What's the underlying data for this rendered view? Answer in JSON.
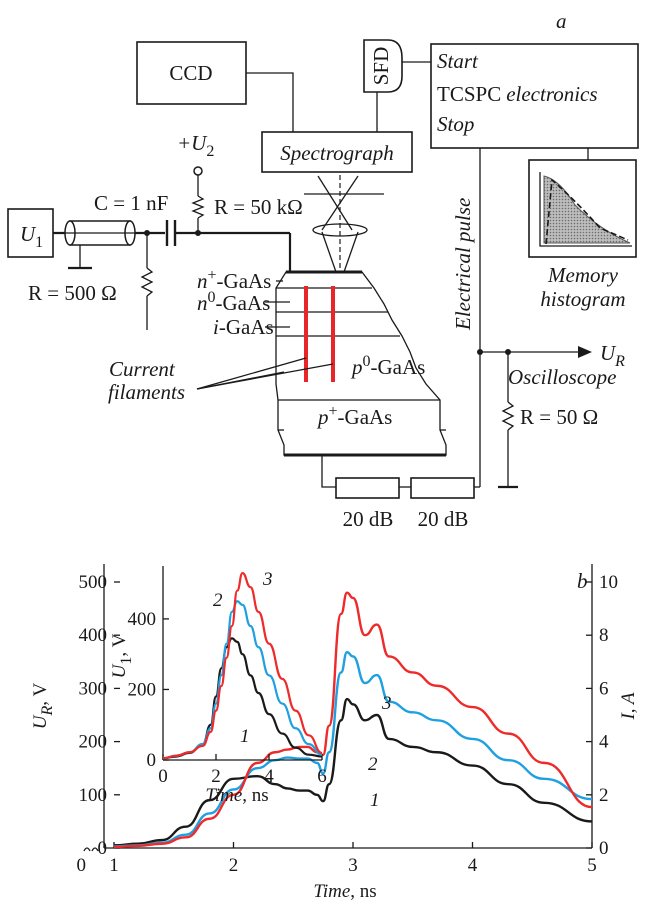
{
  "part_a": {
    "panel_label": "a",
    "ccd": "CCD",
    "sfd": "SFD",
    "spectrograph": "Spectrograph",
    "tcspc": {
      "start": "Start",
      "tcspc_main": "TCSPC",
      "tcspc_it": "electronics",
      "stop": "Stop"
    },
    "memory_histogram_1": "Memory",
    "memory_histogram_2": "histogram",
    "electrical_pulse": "Electrical pulse",
    "u1_sym": "U",
    "u1_sub": "1",
    "u2_sym": "+U",
    "u2_sub": "2",
    "capacitor": "C = 1 nF",
    "r_top": "R = 50 kΩ",
    "r_left": "R = 500 Ω",
    "r_right": "R = 50 Ω",
    "layers": {
      "n_plus": {
        "base": "n",
        "sup": "+",
        "rest": "-GaAs"
      },
      "n_zero": {
        "base": "n",
        "sup": "0",
        "rest": "-GaAs"
      },
      "i": {
        "base": "i",
        "rest": "-GaAs"
      },
      "p_zero": {
        "base": "p",
        "sup": "0",
        "rest": "-GaAs"
      },
      "p_plus": {
        "base": "p",
        "sup": "+",
        "rest": "-GaAs"
      }
    },
    "current_filaments_1": "Current",
    "current_filaments_2": "filaments",
    "ur_sym": "U",
    "ur_sub": "R",
    "oscilloscope": "Oscilloscope",
    "att1": "20 dB",
    "att2": "20 dB"
  },
  "part_b": {
    "panel_label": "b",
    "xlabel_it": "Time",
    "xlabel_unit": ", ns",
    "ylabel_left_sym": "U",
    "ylabel_left_sub": "R",
    "ylabel_left_unit": ", V",
    "ylabel_right": "I, A",
    "inset_xlabel_it": "Time",
    "inset_xlabel_unit": ", ns",
    "inset_ylabel_sym": "U",
    "inset_ylabel_sub": "1",
    "inset_ylabel_unit": ", V",
    "curve_labels": [
      "1",
      "2",
      "3"
    ],
    "inset_curve_labels": [
      "1",
      "2",
      "3"
    ],
    "x_axis_zero": "0"
  },
  "colors": {
    "curve1": "#1a1a1a",
    "curve2": "#1fa0e0",
    "curve3": "#ee2a2a",
    "filament": "#e8262a"
  },
  "chart_data": [
    {
      "type": "line",
      "xlim": [
        1,
        5
      ],
      "ylim": [
        0,
        500
      ],
      "y2lim": [
        0,
        10
      ],
      "xticks": [
        1,
        2,
        3,
        4,
        5
      ],
      "yticks": [
        0,
        100,
        200,
        300,
        400,
        500
      ],
      "y2ticks": [
        0,
        2,
        4,
        6,
        8,
        10
      ],
      "series": [
        {
          "name": "1",
          "x": [
            1.0,
            1.2,
            1.4,
            1.6,
            1.8,
            2.0,
            2.2,
            2.35,
            2.45,
            2.55,
            2.62,
            2.7,
            2.75,
            2.8,
            2.9,
            2.95,
            3.0,
            3.1,
            3.2,
            3.3,
            3.5,
            3.7,
            4.0,
            4.3,
            4.6,
            5.0
          ],
          "y": [
            5,
            8,
            15,
            40,
            90,
            130,
            135,
            120,
            112,
            108,
            108,
            100,
            88,
            120,
            240,
            280,
            270,
            240,
            250,
            205,
            190,
            180,
            155,
            120,
            85,
            50
          ]
        },
        {
          "name": "2",
          "x": [
            1.0,
            1.2,
            1.4,
            1.6,
            1.8,
            2.0,
            2.2,
            2.35,
            2.45,
            2.55,
            2.62,
            2.7,
            2.75,
            2.8,
            2.9,
            2.95,
            3.0,
            3.1,
            3.2,
            3.3,
            3.5,
            3.7,
            4.0,
            4.3,
            4.6,
            5.0
          ],
          "y": [
            3,
            5,
            10,
            25,
            65,
            110,
            150,
            165,
            170,
            168,
            168,
            160,
            140,
            180,
            330,
            368,
            360,
            310,
            325,
            275,
            255,
            240,
            205,
            165,
            130,
            92
          ]
        },
        {
          "name": "3",
          "x": [
            1.0,
            1.2,
            1.4,
            1.6,
            1.8,
            2.0,
            2.2,
            2.35,
            2.45,
            2.55,
            2.62,
            2.7,
            2.75,
            2.8,
            2.9,
            2.95,
            3.0,
            3.1,
            3.2,
            3.3,
            3.5,
            3.7,
            4.0,
            4.3,
            4.6,
            5.0
          ],
          "y": [
            2,
            4,
            8,
            20,
            55,
            100,
            160,
            180,
            185,
            190,
            190,
            180,
            175,
            230,
            440,
            480,
            470,
            400,
            420,
            360,
            330,
            305,
            265,
            215,
            160,
            77
          ]
        }
      ]
    },
    {
      "type": "line",
      "xlim": [
        0,
        6
      ],
      "ylim": [
        0,
        550
      ],
      "xticks": [
        0,
        2,
        4,
        6
      ],
      "yticks": [
        0,
        200,
        400
      ],
      "series": [
        {
          "name": "1",
          "x": [
            0,
            0.5,
            1,
            1.5,
            1.8,
            2.0,
            2.2,
            2.4,
            2.6,
            2.8,
            3.0,
            3.3,
            3.6,
            4.0,
            4.5,
            5.0,
            5.5,
            6.0
          ],
          "y": [
            5,
            10,
            20,
            45,
            100,
            180,
            260,
            320,
            345,
            335,
            300,
            240,
            190,
            130,
            75,
            35,
            15,
            10
          ]
        },
        {
          "name": "2",
          "x": [
            0,
            0.5,
            1,
            1.5,
            1.8,
            2.0,
            2.2,
            2.4,
            2.6,
            2.8,
            3.0,
            3.3,
            3.6,
            4.0,
            4.5,
            5.0,
            5.5,
            6.0
          ],
          "y": [
            5,
            12,
            22,
            45,
            90,
            160,
            240,
            330,
            420,
            450,
            440,
            380,
            320,
            240,
            160,
            90,
            45,
            15
          ]
        },
        {
          "name": "3",
          "x": [
            0,
            0.5,
            1,
            1.5,
            1.8,
            2.0,
            2.2,
            2.4,
            2.6,
            2.8,
            3.0,
            3.3,
            3.6,
            4.0,
            4.5,
            5.0,
            5.5,
            6.0
          ],
          "y": [
            5,
            12,
            22,
            40,
            80,
            140,
            210,
            290,
            380,
            480,
            530,
            490,
            420,
            330,
            230,
            140,
            70,
            20
          ]
        }
      ]
    }
  ]
}
